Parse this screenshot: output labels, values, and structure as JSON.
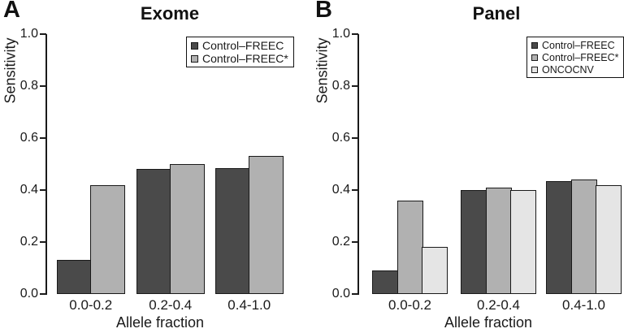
{
  "chart_data": [
    {
      "type": "bar",
      "panel_label": "A",
      "title": "Exome",
      "xlabel": "Allele fraction",
      "ylabel": "Sensitivity",
      "ylim": [
        0,
        1
      ],
      "yticks": [
        "1.0",
        "0.8",
        "0.6",
        "0.4",
        "0.2",
        "0.0"
      ],
      "categories": [
        "0.0-0.2",
        "0.2-0.4",
        "0.4-1.0"
      ],
      "grid": false,
      "legend_position": "top-right",
      "series": [
        {
          "name": "Control–FREEC",
          "color": "#4a4a4a",
          "values": [
            0.13,
            0.48,
            0.485
          ]
        },
        {
          "name": "Control–FREEC*",
          "color": "#b1b1b1",
          "values": [
            0.42,
            0.5,
            0.53
          ]
        }
      ]
    },
    {
      "type": "bar",
      "panel_label": "B",
      "title": "Panel",
      "xlabel": "Allele fraction",
      "ylabel": "Sensitivity",
      "ylim": [
        0,
        1
      ],
      "yticks": [
        "1.0",
        "0.8",
        "0.6",
        "0.4",
        "0.2",
        "0.0"
      ],
      "categories": [
        "0.0-0.2",
        "0.2-0.4",
        "0.4-1.0"
      ],
      "grid": false,
      "legend_position": "top-right",
      "series": [
        {
          "name": "Control–FREEC",
          "color": "#4a4a4a",
          "values": [
            0.09,
            0.4,
            0.435
          ]
        },
        {
          "name": "Control–FREEC*",
          "color": "#b1b1b1",
          "values": [
            0.36,
            0.41,
            0.44
          ]
        },
        {
          "name": "ONCOCNV",
          "color": "#e5e5e5",
          "values": [
            0.18,
            0.4,
            0.42
          ]
        }
      ]
    }
  ]
}
